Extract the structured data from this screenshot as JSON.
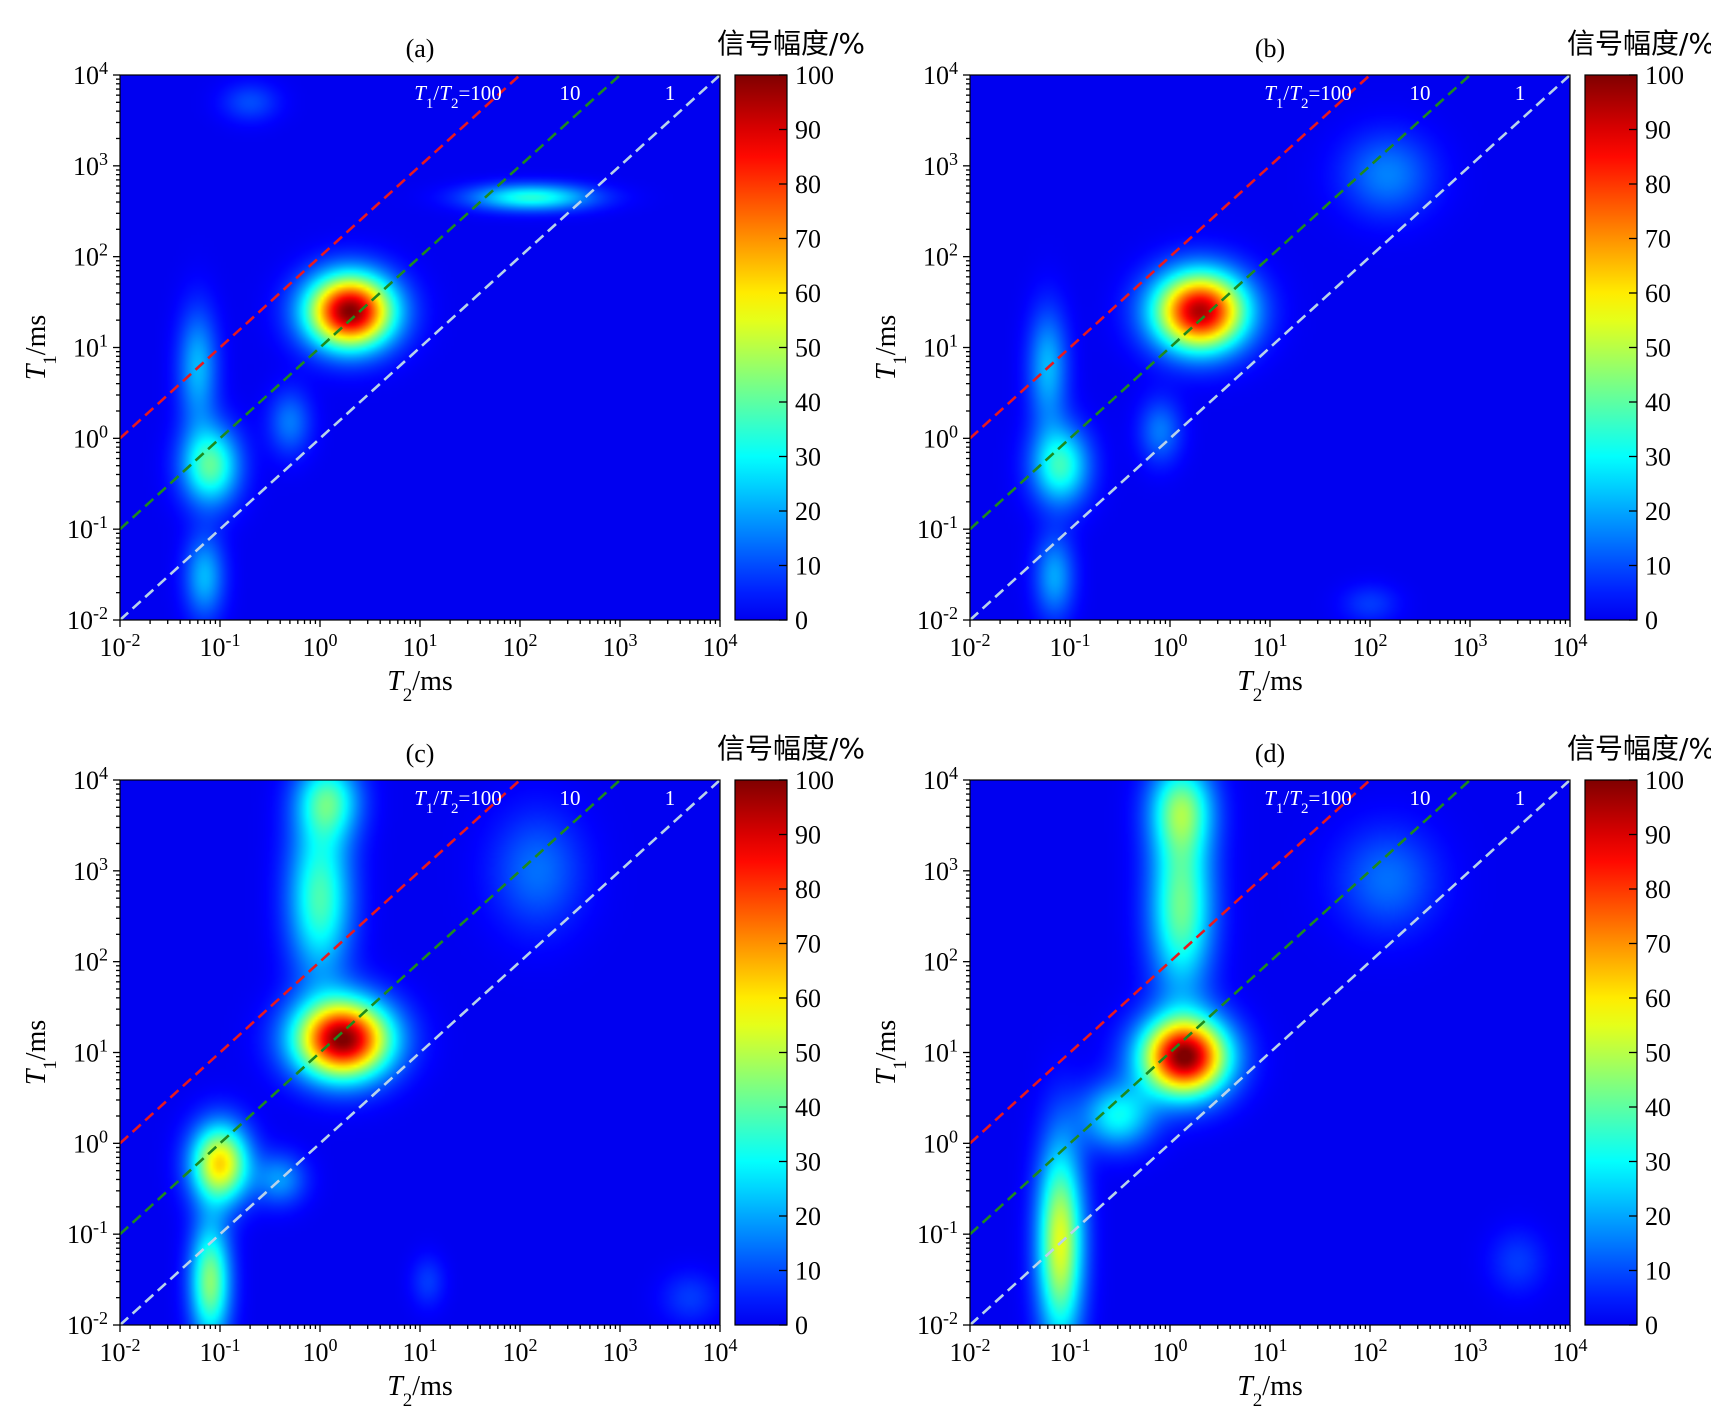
{
  "chart_data": [
    {
      "type": "heatmap",
      "panel_label": "(a)",
      "xlabel": "T2/ms",
      "ylabel": "T1/ms",
      "x_scale": "log",
      "y_scale": "log",
      "xlim": [
        0.01,
        10000
      ],
      "ylim": [
        0.01,
        10000
      ],
      "x_ticks": [
        0.01,
        0.1,
        1,
        10,
        100,
        1000,
        10000
      ],
      "y_ticks": [
        0.01,
        0.1,
        1,
        10,
        100,
        1000,
        10000
      ],
      "colorbar": {
        "label": "信号幅度/%",
        "min": 0,
        "max": 100,
        "ticks": [
          0,
          10,
          20,
          30,
          40,
          50,
          60,
          70,
          80,
          90,
          100
        ],
        "colormap": "jet"
      },
      "reference_lines": [
        {
          "ratio": 100,
          "label": "T1/T2=100",
          "color": "#e8191e"
        },
        {
          "ratio": 10,
          "label": "10",
          "color": "#1e8a1e"
        },
        {
          "ratio": 1,
          "label": "1",
          "color": "#b8d2ea"
        }
      ],
      "peaks": [
        {
          "t2": 2,
          "t1": 25,
          "amplitude": 100,
          "sx": 0.3,
          "sy": 0.28
        },
        {
          "t2": 0.08,
          "t1": 0.5,
          "amplitude": 40,
          "sx": 0.2,
          "sy": 0.3
        },
        {
          "t2": 0.06,
          "t1": 6,
          "amplitude": 22,
          "sx": 0.14,
          "sy": 0.45
        },
        {
          "t2": 0.07,
          "t1": 0.03,
          "amplitude": 22,
          "sx": 0.14,
          "sy": 0.32
        },
        {
          "t2": 130,
          "t1": 450,
          "amplitude": 34,
          "sx": 0.42,
          "sy": 0.1
        },
        {
          "t2": 0.5,
          "t1": 1.5,
          "amplitude": 15,
          "sx": 0.15,
          "sy": 0.25
        },
        {
          "t2": 0.2,
          "t1": 5000,
          "amplitude": 10,
          "sx": 0.2,
          "sy": 0.15
        }
      ]
    },
    {
      "type": "heatmap",
      "panel_label": "(b)",
      "xlabel": "T2/ms",
      "ylabel": "T1/ms",
      "x_scale": "log",
      "y_scale": "log",
      "xlim": [
        0.01,
        10000
      ],
      "ylim": [
        0.01,
        10000
      ],
      "x_ticks": [
        0.01,
        0.1,
        1,
        10,
        100,
        1000,
        10000
      ],
      "y_ticks": [
        0.01,
        0.1,
        1,
        10,
        100,
        1000,
        10000
      ],
      "colorbar": {
        "label": "信号幅度/%",
        "min": 0,
        "max": 100,
        "ticks": [
          0,
          10,
          20,
          30,
          40,
          50,
          60,
          70,
          80,
          90,
          100
        ],
        "colormap": "jet"
      },
      "reference_lines": [
        {
          "ratio": 100,
          "label": "T1/T2=100",
          "color": "#e8191e"
        },
        {
          "ratio": 10,
          "label": "10",
          "color": "#1e8a1e"
        },
        {
          "ratio": 1,
          "label": "1",
          "color": "#b8d2ea"
        }
      ],
      "peaks": [
        {
          "t2": 2,
          "t1": 25,
          "amplitude": 95,
          "sx": 0.32,
          "sy": 0.3
        },
        {
          "t2": 0.08,
          "t1": 0.5,
          "amplitude": 36,
          "sx": 0.2,
          "sy": 0.3
        },
        {
          "t2": 0.06,
          "t1": 6,
          "amplitude": 22,
          "sx": 0.14,
          "sy": 0.45
        },
        {
          "t2": 0.07,
          "t1": 0.03,
          "amplitude": 20,
          "sx": 0.14,
          "sy": 0.32
        },
        {
          "t2": 150,
          "t1": 800,
          "amplitude": 16,
          "sx": 0.32,
          "sy": 0.32
        },
        {
          "t2": 0.8,
          "t1": 1.2,
          "amplitude": 15,
          "sx": 0.15,
          "sy": 0.25
        },
        {
          "t2": 100,
          "t1": 0.015,
          "amplitude": 8,
          "sx": 0.2,
          "sy": 0.15
        }
      ]
    },
    {
      "type": "heatmap",
      "panel_label": "(c)",
      "xlabel": "T2/ms",
      "ylabel": "T1/ms",
      "x_scale": "log",
      "y_scale": "log",
      "xlim": [
        0.01,
        10000
      ],
      "ylim": [
        0.01,
        10000
      ],
      "x_ticks": [
        0.01,
        0.1,
        1,
        10,
        100,
        1000,
        10000
      ],
      "y_ticks": [
        0.01,
        0.1,
        1,
        10,
        100,
        1000,
        10000
      ],
      "colorbar": {
        "label": "信号幅度/%",
        "min": 0,
        "max": 100,
        "ticks": [
          0,
          10,
          20,
          30,
          40,
          50,
          60,
          70,
          80,
          90,
          100
        ],
        "colormap": "jet"
      },
      "reference_lines": [
        {
          "ratio": 100,
          "label": "T1/T2=100",
          "color": "#e8191e"
        },
        {
          "ratio": 10,
          "label": "10",
          "color": "#1e8a1e"
        },
        {
          "ratio": 1,
          "label": "1",
          "color": "#b8d2ea"
        }
      ],
      "peaks": [
        {
          "t2": 1.7,
          "t1": 14,
          "amplitude": 100,
          "sx": 0.33,
          "sy": 0.3
        },
        {
          "t2": 0.1,
          "t1": 0.6,
          "amplitude": 62,
          "sx": 0.2,
          "sy": 0.3
        },
        {
          "t2": 0.08,
          "t1": 0.03,
          "amplitude": 45,
          "sx": 0.14,
          "sy": 0.45
        },
        {
          "t2": 1.0,
          "t1": 500,
          "amplitude": 38,
          "sx": 0.22,
          "sy": 0.6
        },
        {
          "t2": 1.2,
          "t1": 6000,
          "amplitude": 35,
          "sx": 0.22,
          "sy": 0.3
        },
        {
          "t2": 150,
          "t1": 1000,
          "amplitude": 14,
          "sx": 0.32,
          "sy": 0.45
        },
        {
          "t2": 0.4,
          "t1": 0.4,
          "amplitude": 18,
          "sx": 0.18,
          "sy": 0.2
        },
        {
          "t2": 12,
          "t1": 0.03,
          "amplitude": 8,
          "sx": 0.12,
          "sy": 0.2
        },
        {
          "t2": 5000,
          "t1": 0.02,
          "amplitude": 8,
          "sx": 0.2,
          "sy": 0.2
        }
      ]
    },
    {
      "type": "heatmap",
      "panel_label": "(d)",
      "xlabel": "T2/ms",
      "ylabel": "T1/ms",
      "x_scale": "log",
      "y_scale": "log",
      "xlim": [
        0.01,
        10000
      ],
      "ylim": [
        0.01,
        10000
      ],
      "x_ticks": [
        0.01,
        0.1,
        1,
        10,
        100,
        1000,
        10000
      ],
      "y_ticks": [
        0.01,
        0.1,
        1,
        10,
        100,
        1000,
        10000
      ],
      "colorbar": {
        "label": "信号幅度/%",
        "min": 0,
        "max": 100,
        "ticks": [
          0,
          10,
          20,
          30,
          40,
          50,
          60,
          70,
          80,
          90,
          100
        ],
        "colormap": "jet"
      },
      "reference_lines": [
        {
          "ratio": 100,
          "label": "T1/T2=100",
          "color": "#e8191e"
        },
        {
          "ratio": 10,
          "label": "10",
          "color": "#1e8a1e"
        },
        {
          "ratio": 1,
          "label": "1",
          "color": "#b8d2ea"
        }
      ],
      "peaks": [
        {
          "t2": 1.4,
          "t1": 9,
          "amplitude": 100,
          "sx": 0.3,
          "sy": 0.3
        },
        {
          "t2": 0.08,
          "t1": 0.08,
          "amplitude": 55,
          "sx": 0.16,
          "sy": 0.75
        },
        {
          "t2": 1.3,
          "t1": 400,
          "amplitude": 42,
          "sx": 0.22,
          "sy": 0.65
        },
        {
          "t2": 1.3,
          "t1": 5000,
          "amplitude": 38,
          "sx": 0.22,
          "sy": 0.35
        },
        {
          "t2": 0.3,
          "t1": 2,
          "amplitude": 30,
          "sx": 0.25,
          "sy": 0.25
        },
        {
          "t2": 150,
          "t1": 800,
          "amplitude": 14,
          "sx": 0.35,
          "sy": 0.4
        },
        {
          "t2": 3000,
          "t1": 0.05,
          "amplitude": 8,
          "sx": 0.2,
          "sy": 0.25
        }
      ]
    }
  ]
}
